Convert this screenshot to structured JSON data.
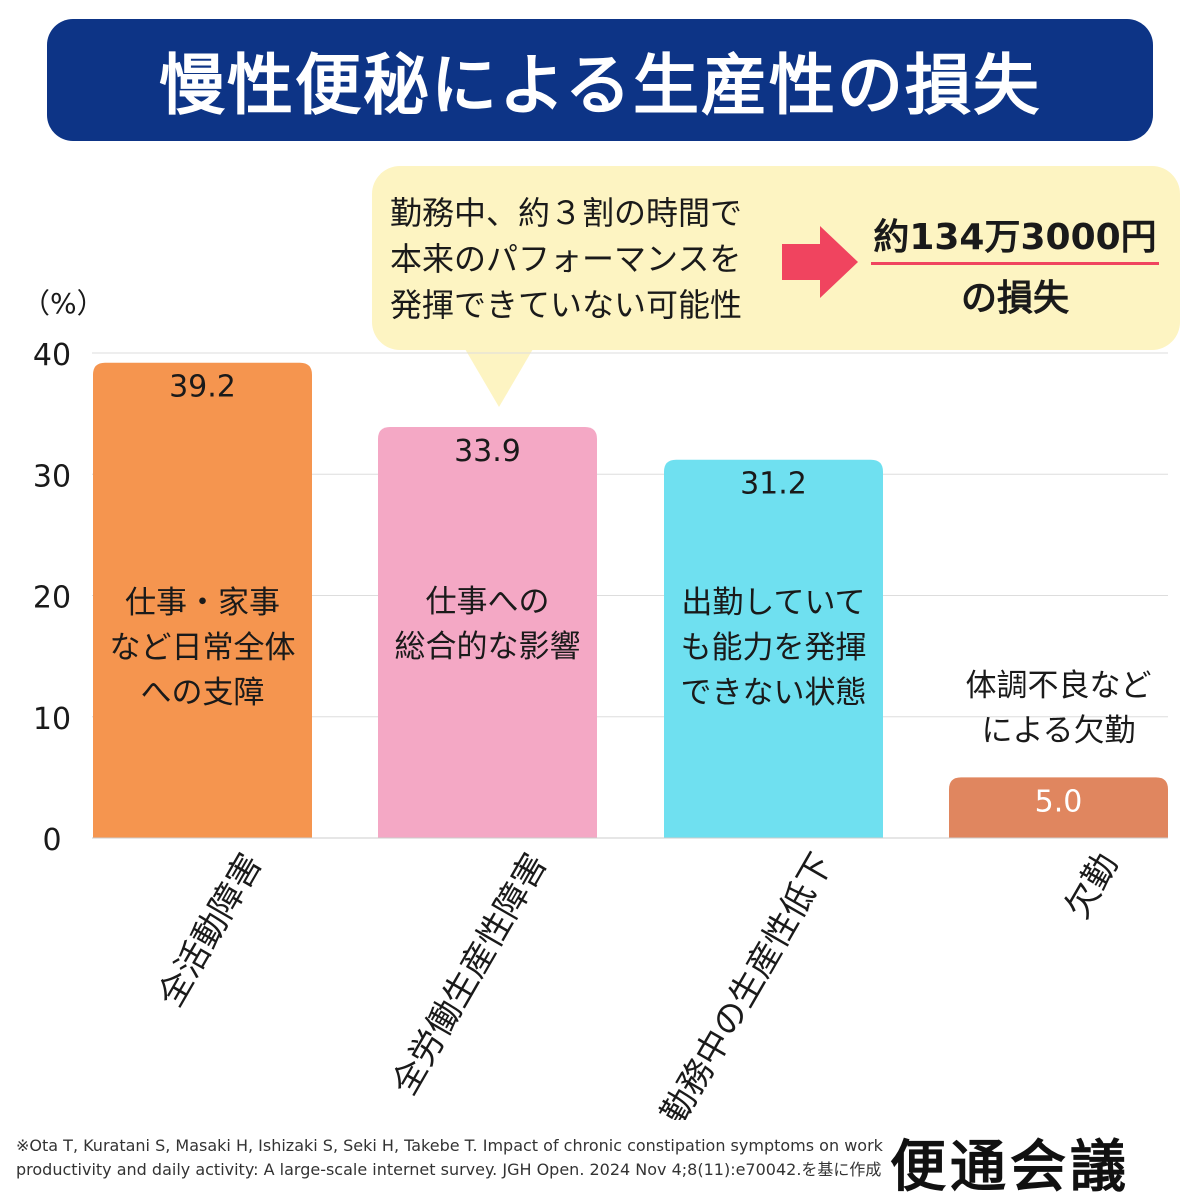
{
  "title": "慢性便秘による生産性の損失",
  "callout": {
    "text": "勤務中、約３割の時間で\n本来のパフォーマンスを\n発揮できていない可能性",
    "result_amount": "約134万3000円",
    "result_suffix": "の損失"
  },
  "colors": {
    "banner": "#0d3486",
    "callout_bg": "#fdf4c2",
    "arrow": "#f0445f",
    "underline": "#f0445f"
  },
  "chart_data": {
    "type": "bar",
    "unit_label": "（%）",
    "categories": [
      "全活動障害",
      "全労働生産性障害",
      "勤務中の生産性低下",
      "欠勤"
    ],
    "values": [
      39.2,
      33.9,
      31.2,
      5.0
    ],
    "value_labels": [
      "39.2",
      "33.9",
      "31.2",
      "5.0"
    ],
    "bar_colors": [
      "#f5954f",
      "#f4a8c5",
      "#6fe0f0",
      "#e0865f"
    ],
    "descriptions": [
      [
        "仕事・家事",
        "など日常全体",
        "への支障"
      ],
      [
        "仕事への",
        "総合的な影響"
      ],
      [
        "出勤していて",
        "も能力を発揮",
        "できない状態"
      ],
      [
        "体調不良など",
        "による欠勤"
      ]
    ],
    "y_ticks": [
      0,
      10,
      20,
      30,
      40
    ],
    "ylim": [
      0,
      40
    ],
    "grid": true
  },
  "footnote": "※Ota T, Kuratani S, Masaki H, Ishizaki S, Seki H, Takebe T. Impact of chronic constipation symptoms on work productivity and daily activity: A large-scale internet survey. JGH Open. 2024 Nov 4;8(11):e70042.を基に作成",
  "brand": "便通会議"
}
